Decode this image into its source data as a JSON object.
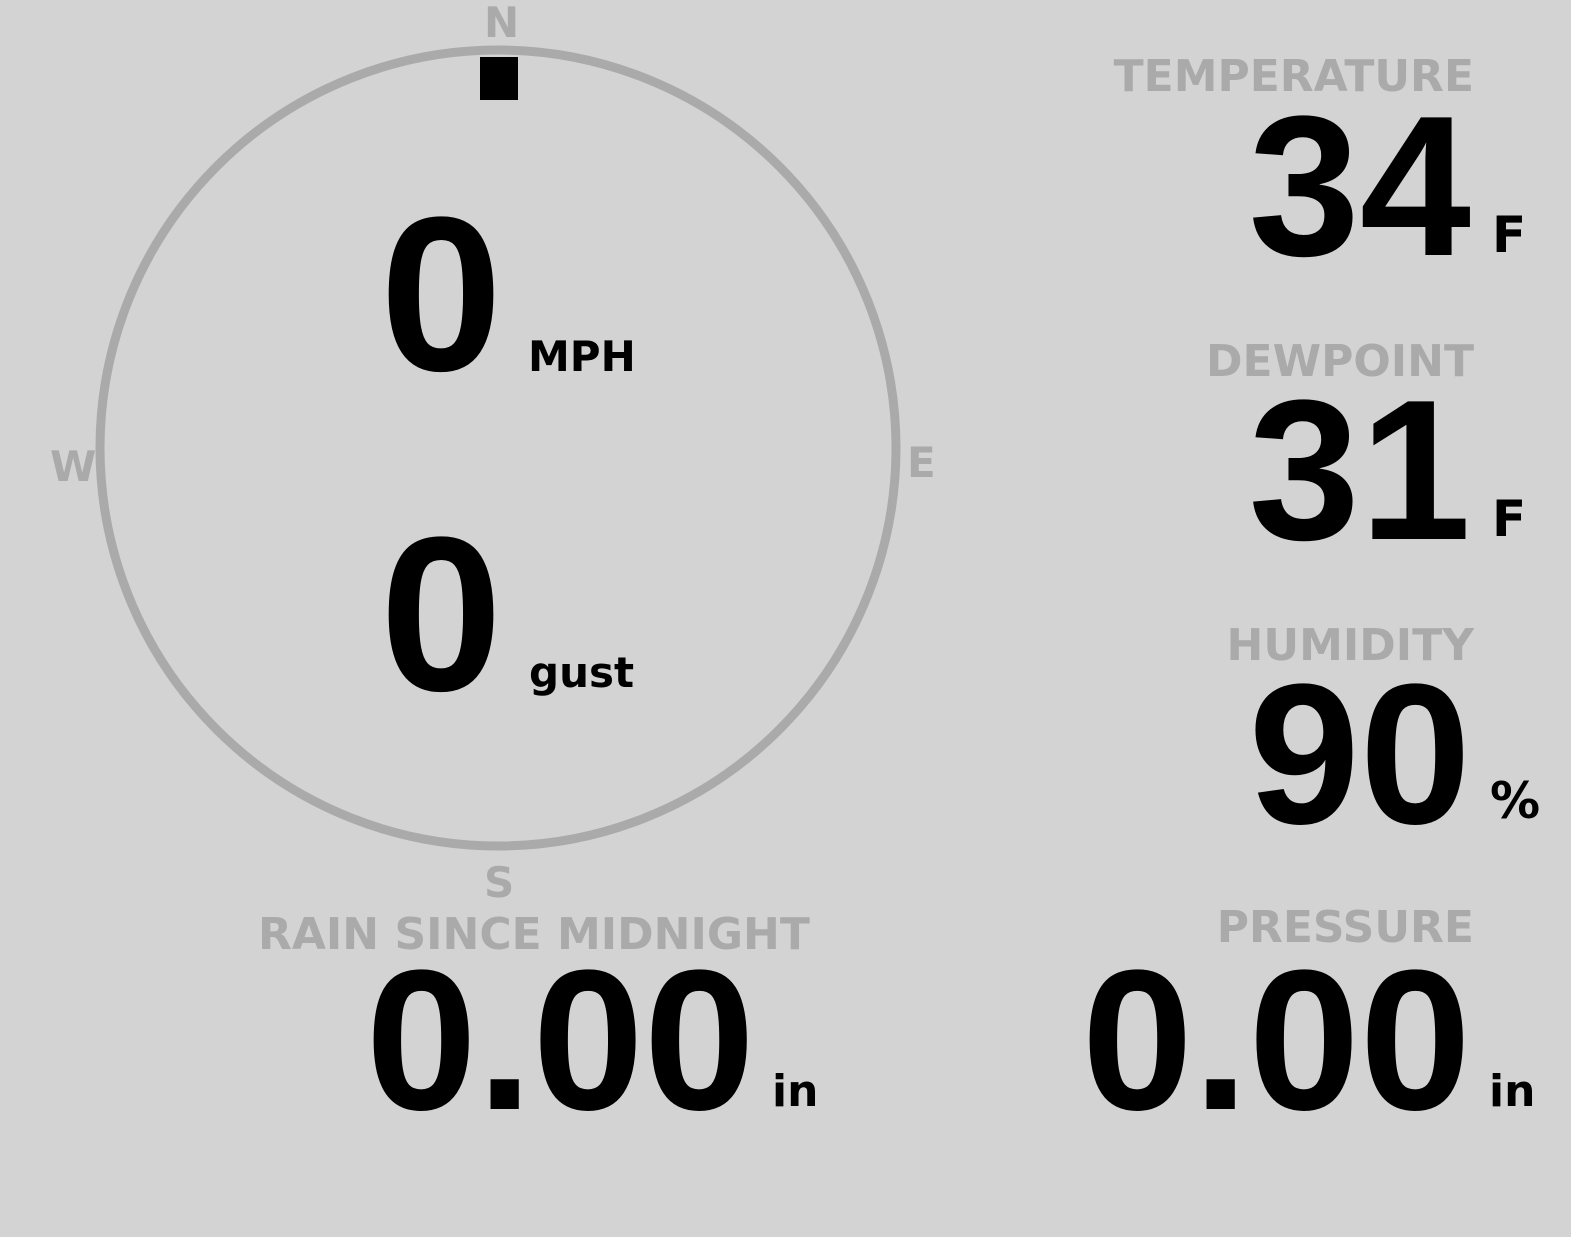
{
  "compass": {
    "n": "N",
    "e": "E",
    "s": "S",
    "w": "W",
    "direction_degrees": 0,
    "ring_color": "#aaaaaa"
  },
  "wind": {
    "speed": "0",
    "speed_unit": "MPH",
    "gust": "0",
    "gust_unit": "gust"
  },
  "temperature": {
    "label": "TEMPERATURE",
    "value": "34",
    "unit": "F"
  },
  "dewpoint": {
    "label": "DEWPOINT",
    "value": "31",
    "unit": "F"
  },
  "humidity": {
    "label": "HUMIDITY",
    "value": "90",
    "unit": "%"
  },
  "rain": {
    "label": "RAIN SINCE MIDNIGHT",
    "value": "0.00",
    "unit": "in"
  },
  "pressure": {
    "label": "PRESSURE",
    "value": "0.00",
    "unit": "in"
  }
}
